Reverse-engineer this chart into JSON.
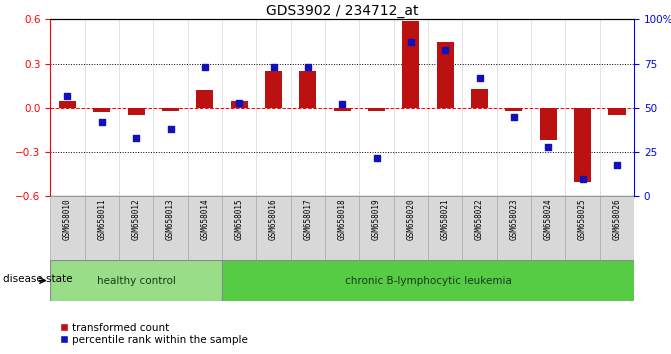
{
  "title": "GDS3902 / 234712_at",
  "samples": [
    "GSM658010",
    "GSM658011",
    "GSM658012",
    "GSM658013",
    "GSM658014",
    "GSM658015",
    "GSM658016",
    "GSM658017",
    "GSM658018",
    "GSM658019",
    "GSM658020",
    "GSM658021",
    "GSM658022",
    "GSM658023",
    "GSM658024",
    "GSM658025",
    "GSM658026"
  ],
  "red_bars": [
    0.05,
    -0.03,
    -0.05,
    -0.02,
    0.12,
    0.05,
    0.25,
    0.25,
    -0.02,
    -0.02,
    0.59,
    0.45,
    0.13,
    -0.02,
    -0.22,
    -0.5,
    -0.05
  ],
  "blue_markers": [
    57,
    42,
    33,
    38,
    73,
    53,
    73,
    73,
    52,
    22,
    87,
    83,
    67,
    45,
    28,
    10,
    18
  ],
  "ylim_left": [
    -0.6,
    0.6
  ],
  "ylim_right": [
    0,
    100
  ],
  "yticks_left": [
    -0.6,
    -0.3,
    0.0,
    0.3,
    0.6
  ],
  "yticks_right": [
    0,
    25,
    50,
    75,
    100
  ],
  "ytick_labels_right": [
    "0",
    "25",
    "50",
    "75",
    "100%"
  ],
  "hline_dotted": [
    0.3,
    -0.3
  ],
  "healthy_control_count": 5,
  "bar_color": "#bb1111",
  "marker_color": "#1111bb",
  "background_color": "#ffffff",
  "healthy_color": "#99dd88",
  "leukemia_color": "#55cc44",
  "label_bg_color": "#d8d8d8",
  "group_labels": [
    "healthy control",
    "chronic B-lymphocytic leukemia"
  ],
  "legend_labels": [
    "transformed count",
    "percentile rank within the sample"
  ],
  "disease_state_label": "disease state"
}
